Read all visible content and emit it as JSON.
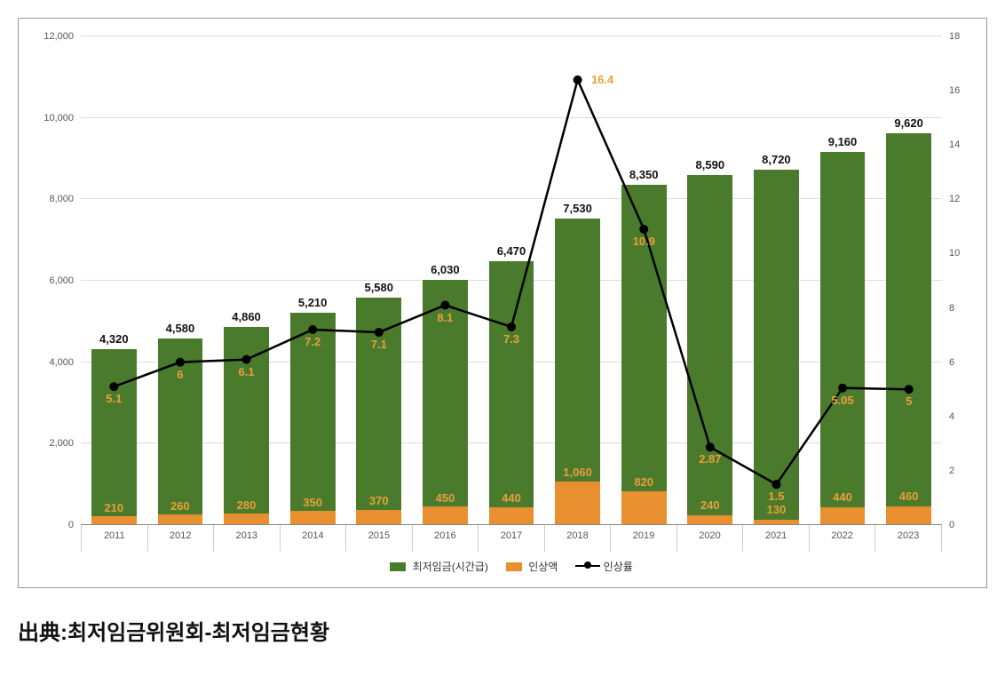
{
  "chart": {
    "type": "bar+line",
    "categories": [
      "2011",
      "2012",
      "2013",
      "2014",
      "2015",
      "2016",
      "2017",
      "2018",
      "2019",
      "2020",
      "2021",
      "2022",
      "2023"
    ],
    "wage": [
      4320,
      4580,
      4860,
      5210,
      5580,
      6030,
      6470,
      7530,
      8350,
      8590,
      8720,
      9160,
      9620
    ],
    "increase": [
      210,
      260,
      280,
      350,
      370,
      450,
      440,
      1060,
      820,
      240,
      130,
      440,
      460
    ],
    "rate": [
      5.1,
      6,
      6.1,
      7.2,
      7.1,
      8.1,
      7.3,
      16.4,
      10.9,
      2.87,
      1.5,
      5.05,
      5
    ],
    "rate_labels": [
      "5.1",
      "6",
      "6.1",
      "7.2",
      "7.1",
      "8.1",
      "7.3",
      "16.4",
      "10.9",
      "2.87",
      "1.5",
      "5.05",
      "5"
    ],
    "wage_labels": [
      "4,320",
      "4,580",
      "4,860",
      "5,210",
      "5,580",
      "6,030",
      "6,470",
      "7,530",
      "8,350",
      "8,590",
      "8,720",
      "9,160",
      "9,620"
    ],
    "increase_labels": [
      "210",
      "260",
      "280",
      "350",
      "370",
      "450",
      "440",
      "1,060",
      "820",
      "240",
      "130",
      "440",
      "460"
    ],
    "colors": {
      "wage_bar": "#4a7a2b",
      "increase_bar": "#e8902f",
      "line": "#000000",
      "rate_label": "#e8a03a",
      "increase_label": "#e8a03a",
      "top_label": "#111111",
      "grid": "#dddddd",
      "axis_text": "#555555",
      "background": "#ffffff",
      "border": "#999999"
    },
    "y_left": {
      "min": 0,
      "max": 12000,
      "step": 2000,
      "ticks": [
        "0",
        "2,000",
        "4,000",
        "6,000",
        "8,000",
        "10,000",
        "12,000"
      ]
    },
    "y_right": {
      "min": 0,
      "max": 18,
      "step": 2,
      "ticks": [
        "0",
        "2",
        "4",
        "6",
        "8",
        "10",
        "12",
        "14",
        "16",
        "18"
      ]
    },
    "bar_width_ratio": 0.68,
    "legend": {
      "wage": "최저임금(시간급)",
      "increase": "인상액",
      "rate": "인상률"
    },
    "label_fontsize": 13,
    "axis_fontsize": 11,
    "legend_fontsize": 12
  },
  "caption": "出典:최저임금위원회-최저임금현황"
}
